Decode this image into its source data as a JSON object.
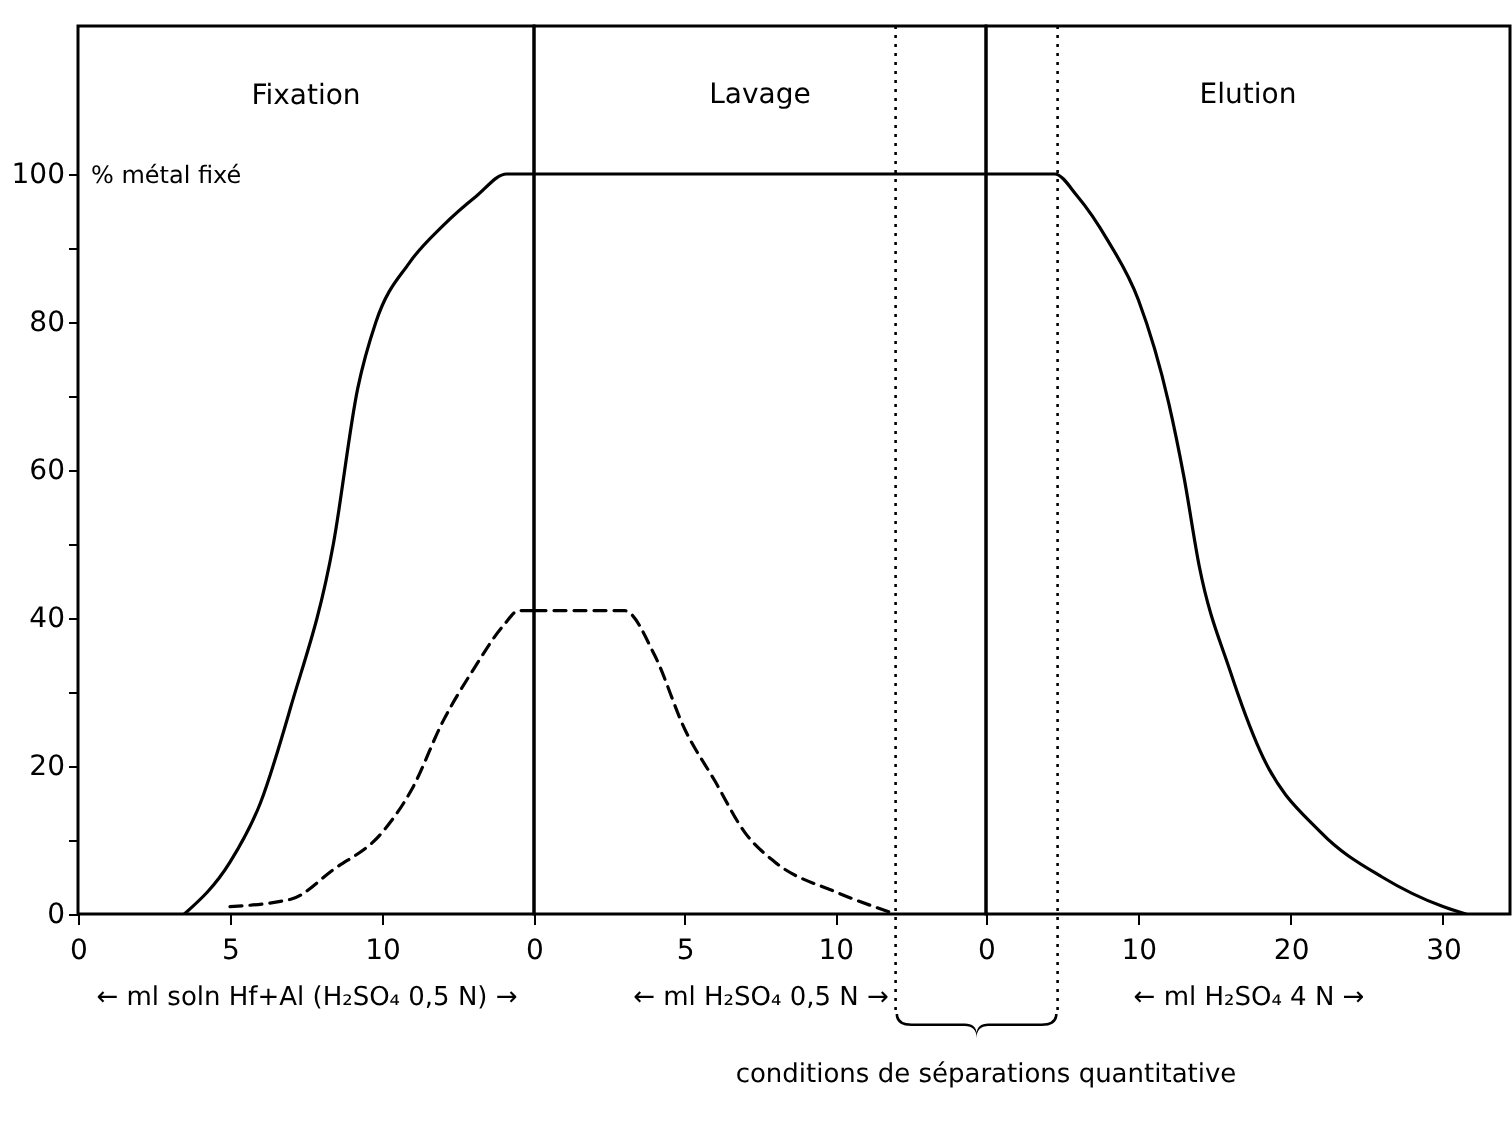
{
  "chart_data": [
    {
      "type": "line",
      "title": "Fixation",
      "ylabel": "% métal fixé",
      "xlabel": "← ml soln Hf+Al (H₂SO₄ 0,5 N) →",
      "xlim": [
        0,
        15
      ],
      "xticks": [
        0,
        5,
        10
      ],
      "ylim": [
        0,
        120
      ],
      "yticks": [
        0,
        {
          "value": 10,
          "label": null
        },
        20,
        {
          "value": 30,
          "label": null
        },
        40,
        {
          "value": 50,
          "label": null
        },
        60,
        {
          "value": 70,
          "label": null
        },
        80,
        {
          "value": 90,
          "label": null
        },
        100
      ],
      "grid": false,
      "series": [
        {
          "color": "#000000",
          "line_style": "solid",
          "x": [
            3.5,
            5,
            6,
            7,
            8.4,
            9.2,
            9.8,
            10.9,
            12,
            13.1,
            14.1,
            15
          ],
          "values": [
            0,
            7,
            15,
            28,
            50,
            71,
            80,
            88,
            93,
            97,
            100,
            100
          ]
        },
        {
          "color": "#000000",
          "line_style": "dashed",
          "x": [
            5,
            7,
            8.4,
            10,
            11,
            12,
            13,
            14,
            14.5,
            15
          ],
          "values": [
            1,
            2,
            6,
            11,
            17,
            26,
            33,
            39,
            41,
            41
          ]
        }
      ]
    },
    {
      "type": "line",
      "title": "Lavage",
      "xlabel": "← ml H₂SO₄ 0,5 N →",
      "xlim": [
        0,
        15
      ],
      "xticks": [
        0,
        5,
        10
      ],
      "ylim": [
        0,
        120
      ],
      "yticks": [
        0,
        20,
        40,
        60,
        80,
        100
      ],
      "grid": false,
      "tick_labels": "x",
      "series": [
        {
          "color": "#000000",
          "line_style": "solid",
          "x": [
            0,
            15
          ],
          "values": [
            100,
            100
          ]
        },
        {
          "color": "#000000",
          "line_style": "dashed",
          "x": [
            0,
            3,
            4,
            5,
            6,
            7,
            8,
            10,
            12
          ],
          "values": [
            41,
            41,
            35,
            25,
            18,
            11,
            7,
            3,
            0
          ]
        }
      ],
      "ref_lines": [
        {
          "axis": "x",
          "value": 12,
          "line_style": "dotted"
        }
      ],
      "annotations": [
        "conditions de séparations quantitative"
      ]
    },
    {
      "type": "line",
      "title": "Elution",
      "xlabel": "← ml H₂SO₄ 4 N →",
      "xlim": [
        0,
        34.4
      ],
      "xticks": [
        0,
        10,
        20,
        30
      ],
      "ylim": [
        0,
        120
      ],
      "yticks": [
        0,
        20,
        40,
        60,
        80,
        100
      ],
      "grid": false,
      "tick_labels": "x",
      "series": [
        {
          "color": "#000000",
          "line_style": "solid",
          "x": [
            0,
            4.5,
            6,
            8,
            10,
            12,
            13,
            14,
            16,
            18,
            22,
            26,
            30,
            31.5
          ],
          "values": [
            100,
            100,
            97,
            91,
            83,
            69,
            59,
            47,
            33,
            22,
            11,
            5,
            1,
            0
          ]
        }
      ],
      "ref_lines": [
        {
          "axis": "x",
          "value": 4.7,
          "line_style": "dotted"
        }
      ]
    }
  ]
}
